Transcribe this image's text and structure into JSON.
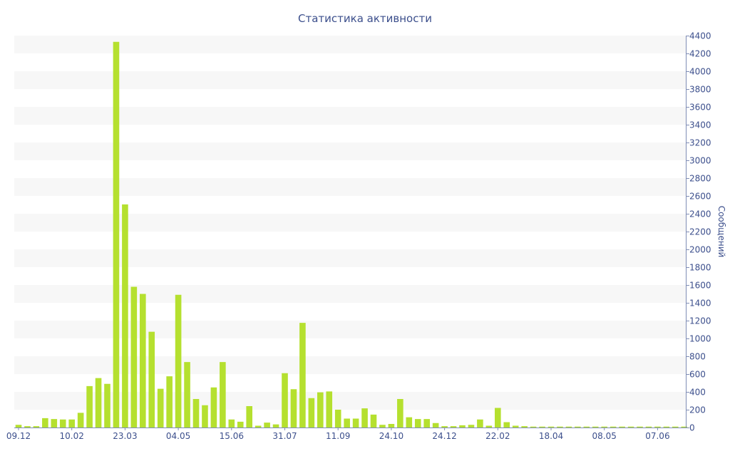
{
  "chart_data": {
    "type": "bar",
    "title": "Статистика активности",
    "ylabel": "Сообщений",
    "xlabel": "",
    "ylim": [
      0,
      4400
    ],
    "y_tick_step": 200,
    "y_axis_side": "right",
    "grid": "alternating horizontal bands",
    "legend": "none",
    "colors": {
      "bar": "#b5e02f",
      "text": "#3c4f8c",
      "band": "#f7f7f7"
    },
    "x_tick_labels": [
      {
        "index": 0,
        "label": "09.12"
      },
      {
        "index": 6,
        "label": "10.02"
      },
      {
        "index": 12,
        "label": "23.03"
      },
      {
        "index": 18,
        "label": "04.05"
      },
      {
        "index": 24,
        "label": "15.06"
      },
      {
        "index": 30,
        "label": "31.07"
      },
      {
        "index": 36,
        "label": "11.09"
      },
      {
        "index": 42,
        "label": "24.10"
      },
      {
        "index": 48,
        "label": "24.12"
      },
      {
        "index": 54,
        "label": "22.02"
      },
      {
        "index": 60,
        "label": "18.04"
      },
      {
        "index": 66,
        "label": "08.05"
      },
      {
        "index": 72,
        "label": "07.06"
      }
    ],
    "values": [
      30,
      15,
      15,
      105,
      95,
      90,
      90,
      165,
      465,
      555,
      490,
      4330,
      2505,
      1580,
      1500,
      1075,
      435,
      575,
      1490,
      735,
      320,
      250,
      450,
      735,
      90,
      65,
      240,
      20,
      55,
      35,
      610,
      430,
      1175,
      330,
      395,
      405,
      200,
      100,
      100,
      215,
      145,
      30,
      40,
      320,
      115,
      95,
      95,
      50,
      15,
      15,
      25,
      30,
      90,
      20,
      220,
      60,
      20,
      15,
      10,
      10,
      10,
      10,
      10,
      10,
      10,
      10,
      10,
      10,
      10,
      10,
      10,
      10,
      10,
      10,
      10,
      10
    ]
  }
}
